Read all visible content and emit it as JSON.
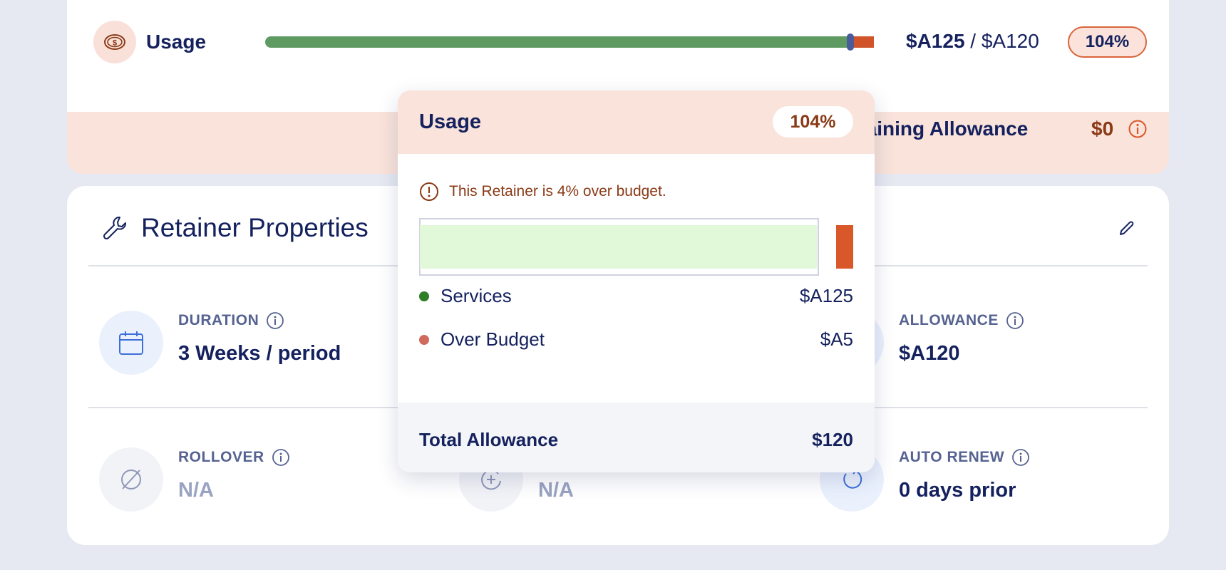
{
  "usage": {
    "label": "Usage",
    "spent": "$A125",
    "separator": "/",
    "allowance": "$A120",
    "percent_label": "104%",
    "used_fraction": 1.0,
    "over_fraction": 0.04,
    "icon": "coin-icon"
  },
  "remaining": {
    "label": "Remaining Allowance",
    "value": "$0",
    "icon": "info-icon"
  },
  "properties": {
    "title": "Retainer Properties",
    "title_icon": "wrench-icon",
    "edit_icon": "pencil-icon",
    "duration": {
      "label": "DURATION",
      "value": "3 Weeks / period",
      "icon": "calendar-icon"
    },
    "allowance": {
      "label": "ALLOWANCE",
      "value": "$A120",
      "icon": "money-icon"
    },
    "rollover": {
      "label": "ROLLOVER",
      "value": "N/A",
      "icon": "no-symbol-icon"
    },
    "middle": {
      "value": "N/A",
      "icon": "add-rotate-icon"
    },
    "auto_renew": {
      "label": "AUTO RENEW",
      "value": "0 days prior",
      "icon": "renew-icon"
    }
  },
  "tooltip": {
    "title": "Usage",
    "percent_label": "104%",
    "warning": "This Retainer is 4% over budget.",
    "bar": {
      "fill_fraction": 1.0,
      "over_fraction": 0.04
    },
    "rows": [
      {
        "label": "Services",
        "value": "$A125",
        "color": "#2f7d25"
      },
      {
        "label": "Over Budget",
        "value": "$A5",
        "color": "#d0695e"
      }
    ],
    "total_label": "Total Allowance",
    "total_value": "$120"
  },
  "colors": {
    "navy": "#14215e",
    "usage_green": "#5e9a62",
    "over_red": "#d1532a",
    "warning_brown": "#8a3a16",
    "peach": "#f9e3da"
  }
}
